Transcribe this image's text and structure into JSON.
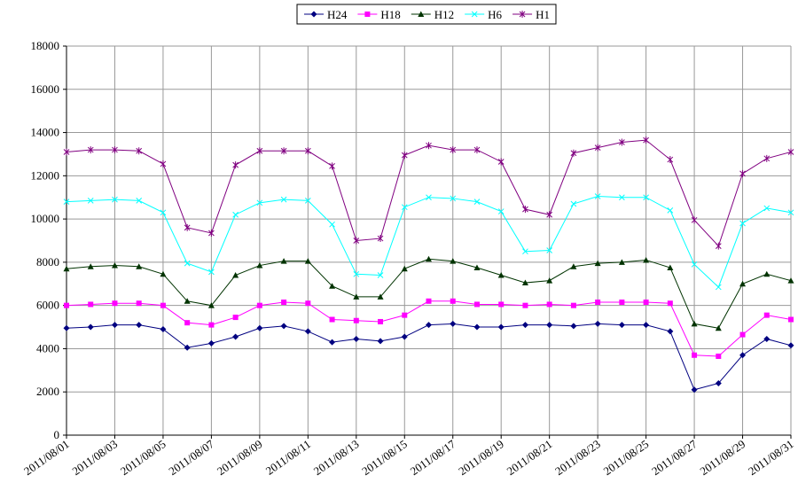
{
  "chart_data": {
    "type": "line",
    "categories": [
      "2011/08/01",
      null,
      "2011/08/03",
      null,
      "2011/08/05",
      null,
      "2011/08/07",
      null,
      "2011/08/09",
      null,
      "2011/08/11",
      null,
      "2011/08/13",
      null,
      "2011/08/15",
      null,
      "2011/08/17",
      null,
      "2011/08/19",
      null,
      "2011/08/21",
      null,
      "2011/08/23",
      null,
      "2011/08/25",
      null,
      "2011/08/27",
      null,
      "2011/08/29",
      null,
      "2011/08/31"
    ],
    "ylim": [
      0,
      18000
    ],
    "yticks": [
      0,
      2000,
      4000,
      6000,
      8000,
      10000,
      12000,
      14000,
      16000,
      18000
    ],
    "grid": true,
    "legend": "top",
    "series": [
      {
        "name": "H24",
        "color": "#000080",
        "marker": "diamond",
        "values": [
          4950,
          5000,
          5100,
          5100,
          4900,
          4050,
          4250,
          4550,
          4950,
          5050,
          4800,
          4300,
          4450,
          4350,
          4550,
          5100,
          5150,
          5000,
          5000,
          5100,
          5100,
          5050,
          5150,
          5100,
          5100,
          4800,
          2100,
          2400,
          3700,
          4450,
          4150
        ]
      },
      {
        "name": "H18",
        "color": "#ff00ff",
        "marker": "square",
        "values": [
          6000,
          6050,
          6100,
          6100,
          6000,
          5200,
          5100,
          5450,
          6000,
          6150,
          6100,
          5350,
          5300,
          5250,
          5550,
          6200,
          6200,
          6050,
          6050,
          6000,
          6050,
          6000,
          6150,
          6150,
          6150,
          6100,
          3700,
          3650,
          4650,
          5550,
          5350
        ]
      },
      {
        "name": "H12",
        "color": "#003300",
        "marker": "triangle",
        "values": [
          7700,
          7800,
          7850,
          7800,
          7450,
          6200,
          6000,
          7400,
          7850,
          8050,
          8050,
          6900,
          6400,
          6400,
          7700,
          8150,
          8050,
          7750,
          7400,
          7050,
          7150,
          7800,
          7950,
          8000,
          8100,
          7750,
          5150,
          4950,
          7000,
          7450,
          7150
        ]
      },
      {
        "name": "H6",
        "color": "#00ffff",
        "marker": "cross",
        "values": [
          10800,
          10850,
          10900,
          10850,
          10300,
          7950,
          7550,
          10200,
          10750,
          10900,
          10850,
          9750,
          7450,
          7400,
          10550,
          11000,
          10950,
          10800,
          10350,
          8500,
          8550,
          10700,
          11050,
          11000,
          11000,
          10400,
          7900,
          6850,
          9800,
          10500,
          10300
        ]
      },
      {
        "name": "H1",
        "color": "#800080",
        "marker": "star",
        "values": [
          13100,
          13200,
          13200,
          13150,
          12550,
          9600,
          9350,
          12500,
          13150,
          13150,
          13150,
          12450,
          9000,
          9100,
          12950,
          13400,
          13200,
          13200,
          12650,
          10450,
          10200,
          13050,
          13300,
          13550,
          13650,
          12750,
          9950,
          8750,
          12100,
          12800,
          13100
        ]
      }
    ]
  }
}
